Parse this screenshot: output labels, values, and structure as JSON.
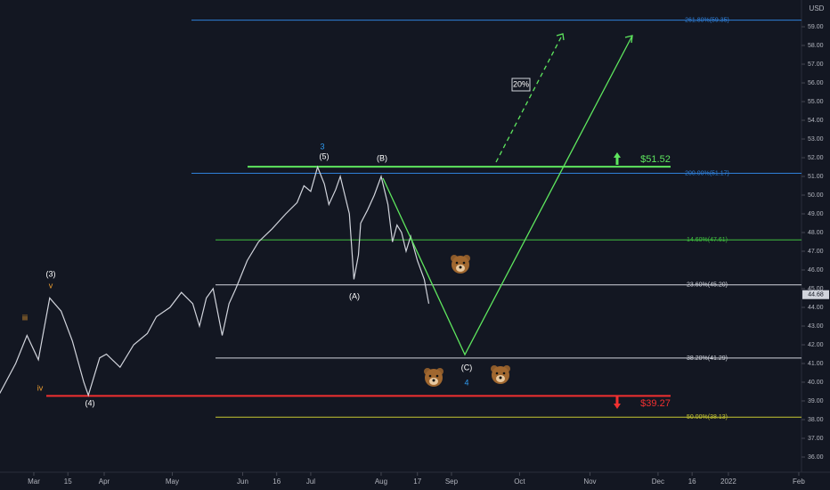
{
  "chart_data": {
    "type": "line",
    "currency": "USD",
    "color": "#d1d4dc",
    "x": [
      -15,
      -8,
      -3,
      2,
      7,
      12,
      17,
      22,
      24,
      29,
      32,
      38,
      44,
      50,
      54,
      60,
      65,
      70,
      73,
      76,
      79,
      83,
      86,
      89,
      94,
      99,
      105,
      111,
      116,
      119,
      122,
      125,
      128,
      130,
      133,
      135,
      137,
      139,
      141,
      143,
      144,
      147,
      150,
      153,
      156,
      158,
      160,
      162,
      164,
      166,
      169,
      172,
      174
    ],
    "values": [
      39.4,
      41.0,
      42.5,
      41.2,
      44.5,
      43.8,
      42.2,
      40.0,
      39.3,
      41.3,
      41.5,
      40.8,
      42.0,
      42.6,
      43.5,
      44.0,
      44.8,
      44.2,
      43.0,
      44.5,
      45.0,
      42.5,
      44.2,
      45.0,
      46.5,
      47.5,
      48.2,
      49.0,
      49.6,
      50.5,
      50.2,
      51.5,
      50.6,
      49.5,
      50.3,
      51.0,
      50.0,
      49.0,
      45.5,
      46.8,
      48.5,
      49.2,
      50.0,
      51.0,
      49.5,
      47.5,
      48.4,
      48.0,
      47.0,
      47.8,
      46.5,
      45.5,
      44.2
    ],
    "last_price": 44.68,
    "xlim": [
      -14.9,
      338.2
    ],
    "ylim": [
      35.19,
      60.43
    ],
    "xticks": [
      {
        "value": 0,
        "label": "Mar"
      },
      15,
      {
        "value": 31,
        "label": "Apr"
      },
      {
        "value": 61,
        "label": "May"
      },
      {
        "value": 92,
        "label": "Jun"
      },
      {
        "value": 107,
        "label": "16"
      },
      {
        "value": 122,
        "label": "Jul"
      },
      {
        "value": 153,
        "label": "Aug"
      },
      {
        "value": 169,
        "label": "17"
      },
      {
        "value": 184,
        "label": "Sep"
      },
      {
        "value": 214,
        "label": "Oct"
      },
      {
        "value": 245,
        "label": "Nov"
      },
      {
        "value": 275,
        "label": "Dec"
      },
      {
        "value": 290,
        "label": "16"
      },
      {
        "value": 306,
        "label": "2022"
      },
      {
        "value": 337,
        "label": "Feb"
      }
    ],
    "yticks": [
      {
        "value": 36,
        "label": "36.00"
      },
      {
        "value": 37,
        "label": "37.00"
      },
      {
        "value": 38,
        "label": "38.00"
      },
      {
        "value": 39,
        "label": "39.00"
      },
      {
        "value": 40,
        "label": "40.00"
      },
      {
        "value": 41,
        "label": "41.00"
      },
      {
        "value": 42,
        "label": "42.00"
      },
      {
        "value": 43,
        "label": "43.00"
      },
      {
        "value": 44,
        "label": "44.00"
      },
      {
        "value": 45,
        "label": "45.00"
      },
      {
        "value": 46,
        "label": "46.00"
      },
      {
        "value": 47,
        "label": "47.00"
      },
      {
        "value": 48,
        "label": "48.00"
      },
      {
        "value": 49,
        "label": "49.00"
      },
      {
        "value": 50,
        "label": "50.00"
      },
      {
        "value": 51,
        "label": "51.00"
      },
      {
        "value": 52,
        "label": "52.00"
      },
      {
        "value": 53,
        "label": "53.00"
      },
      {
        "value": 54,
        "label": "54.00"
      },
      {
        "value": 55,
        "label": "55.00"
      },
      {
        "value": 56,
        "label": "56.00"
      },
      {
        "value": 57,
        "label": "57.00"
      },
      {
        "value": 58,
        "label": "58.00"
      },
      {
        "value": 59,
        "label": "59.00"
      }
    ],
    "levels": [
      {
        "value": 59.35,
        "label": "261.80%(59.35)",
        "color": "#2f7fd8"
      },
      {
        "value": 51.17,
        "label": "200.00%(51.17)",
        "color": "#2f7fd8"
      },
      {
        "value": 47.61,
        "label": "14.60%(47.61)",
        "color": "#3fbf3f"
      },
      {
        "value": 45.2,
        "label": "23.60%(45.20)",
        "color": "#d1d4dc"
      },
      {
        "value": 41.29,
        "label": "38.20%(41.29)",
        "color": "#d1d4dc"
      },
      {
        "value": 38.13,
        "label": "50.00%(38.13)",
        "color": "#c8c832"
      }
    ],
    "targets": [
      {
        "value": 51.52,
        "label": "$51.52",
        "color": "#5ee65e"
      },
      {
        "value": 39.27,
        "label": "$39.27",
        "color": "#f23030"
      }
    ],
    "wave_labels": [
      "(3)",
      "v",
      "iii",
      "iv",
      "(4)",
      "3",
      "(5)",
      "(B)",
      "(A)",
      "(C)",
      "4"
    ],
    "projection_label": "20%"
  }
}
